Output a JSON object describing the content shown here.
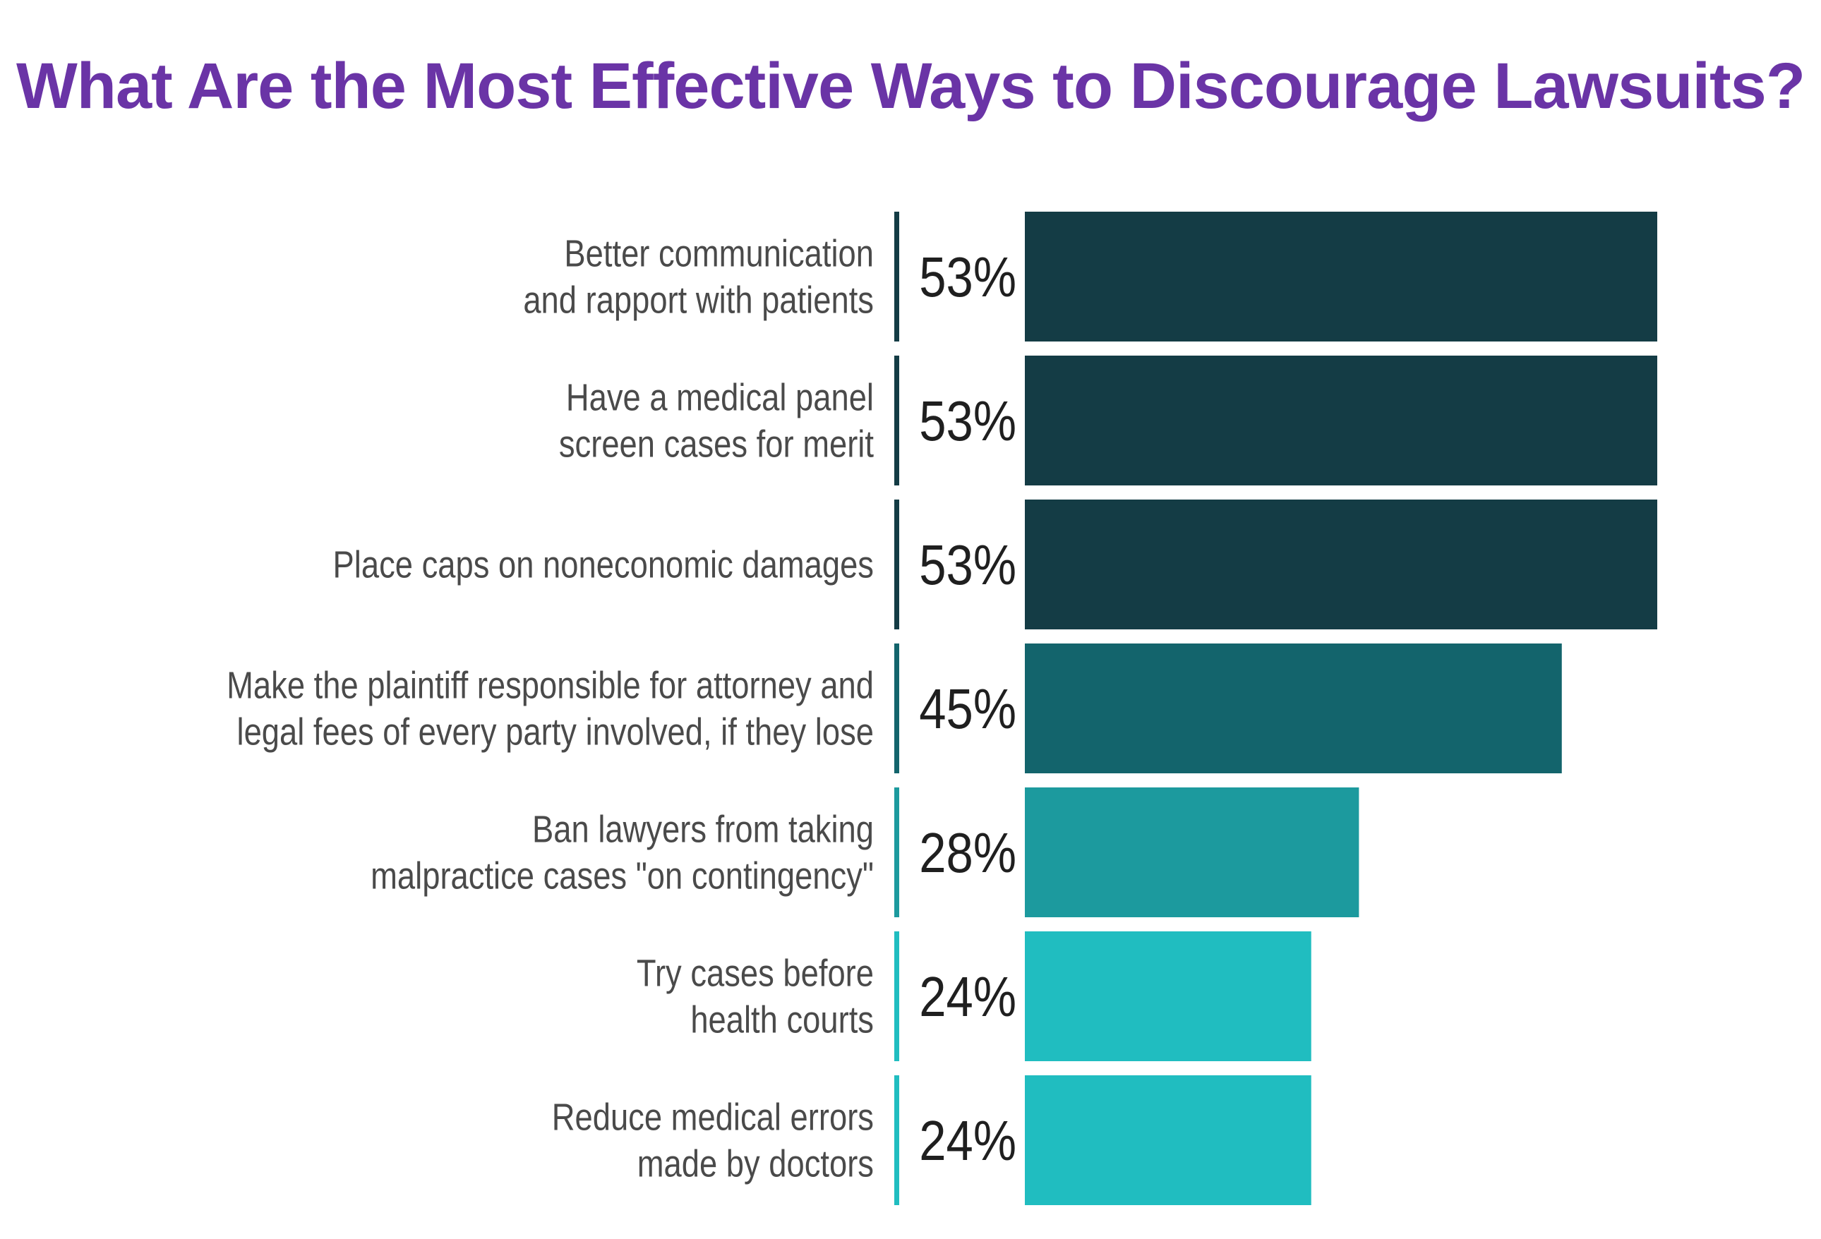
{
  "chart_data": {
    "type": "bar",
    "orientation": "horizontal",
    "title": "What Are the Most Effective Ways to Discourage Lawsuits?",
    "xlabel": "",
    "ylabel": "",
    "xlim": [
      0,
      53
    ],
    "grid": false,
    "value_suffix": "%",
    "categories": [
      [
        "Better communication",
        "and rapport with patients"
      ],
      [
        "Have a medical panel",
        "screen cases for merit"
      ],
      [
        "Place caps on noneconomic damages"
      ],
      [
        "Make the plaintiff responsible for attorney and",
        "legal fees of every party involved, if they lose"
      ],
      [
        "Ban lawyers from taking",
        "malpractice cases \"on contingency\""
      ],
      [
        "Try cases before",
        "health courts"
      ],
      [
        "Reduce medical errors",
        "made by doctors"
      ]
    ],
    "values": [
      53,
      53,
      53,
      45,
      28,
      24,
      24
    ],
    "bar_colors": [
      "#143c45",
      "#143c45",
      "#143c45",
      "#13646c",
      "#1c9a9e",
      "#20bdc0",
      "#20bdc0"
    ]
  }
}
